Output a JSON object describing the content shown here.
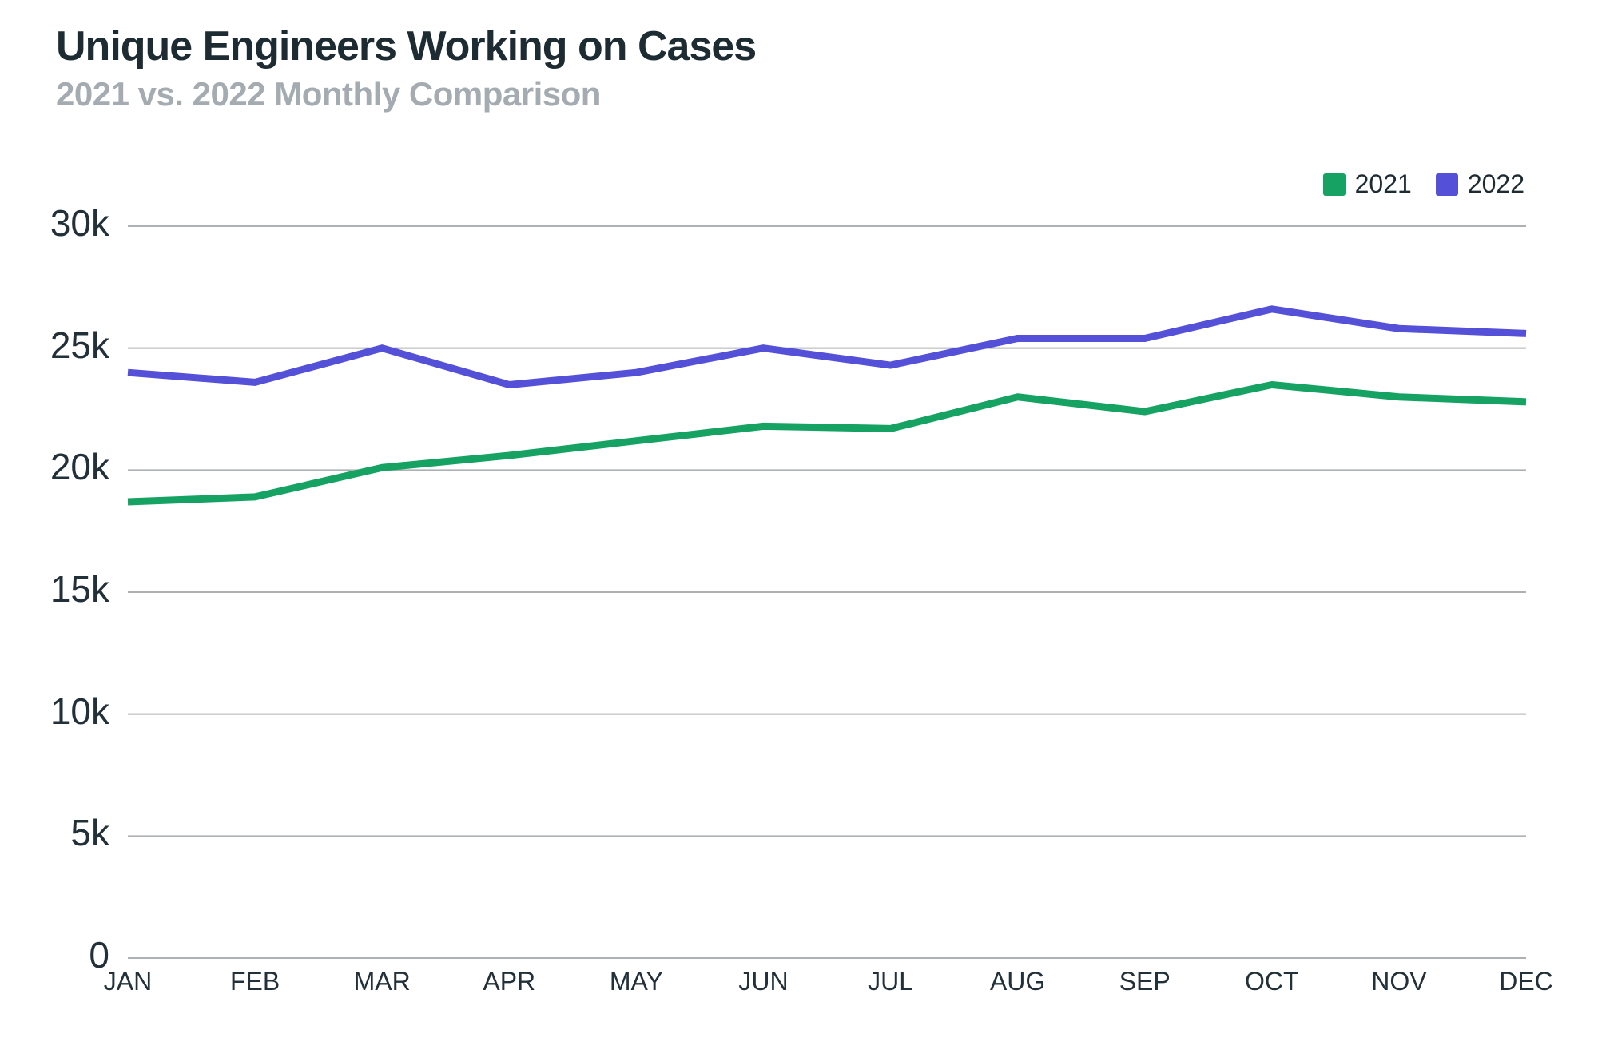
{
  "header": {
    "title": "Unique Engineers Working on Cases",
    "subtitle": "2021 vs. 2022 Monthly Comparison"
  },
  "chart_data": {
    "type": "line",
    "title": "Unique Engineers Working on Cases",
    "subtitle": "2021 vs. 2022 Monthly Comparison",
    "categories": [
      "JAN",
      "FEB",
      "MAR",
      "APR",
      "MAY",
      "JUN",
      "JUL",
      "AUG",
      "SEP",
      "OCT",
      "NOV",
      "DEC"
    ],
    "series": [
      {
        "name": "2021",
        "color": "#16a262",
        "values": [
          18700,
          18900,
          20100,
          20600,
          21200,
          21800,
          21700,
          23000,
          22400,
          23500,
          23000,
          22800
        ]
      },
      {
        "name": "2022",
        "color": "#5450d8",
        "values": [
          24000,
          23600,
          25000,
          23500,
          24000,
          25000,
          24300,
          25400,
          25400,
          26600,
          25800,
          25600
        ]
      }
    ],
    "xlabel": "",
    "ylabel": "",
    "ylim": [
      0,
      30000
    ],
    "yticks": [
      {
        "value": 0,
        "label": "0"
      },
      {
        "value": 5000,
        "label": "5k"
      },
      {
        "value": 10000,
        "label": "10k"
      },
      {
        "value": 15000,
        "label": "15k"
      },
      {
        "value": 20000,
        "label": "20k"
      },
      {
        "value": 25000,
        "label": "25k"
      },
      {
        "value": 30000,
        "label": "30k"
      }
    ],
    "grid": "horizontal",
    "grid_color": "#aeb1b4",
    "legend_position": "top-right",
    "background_color": "#ffffff"
  }
}
